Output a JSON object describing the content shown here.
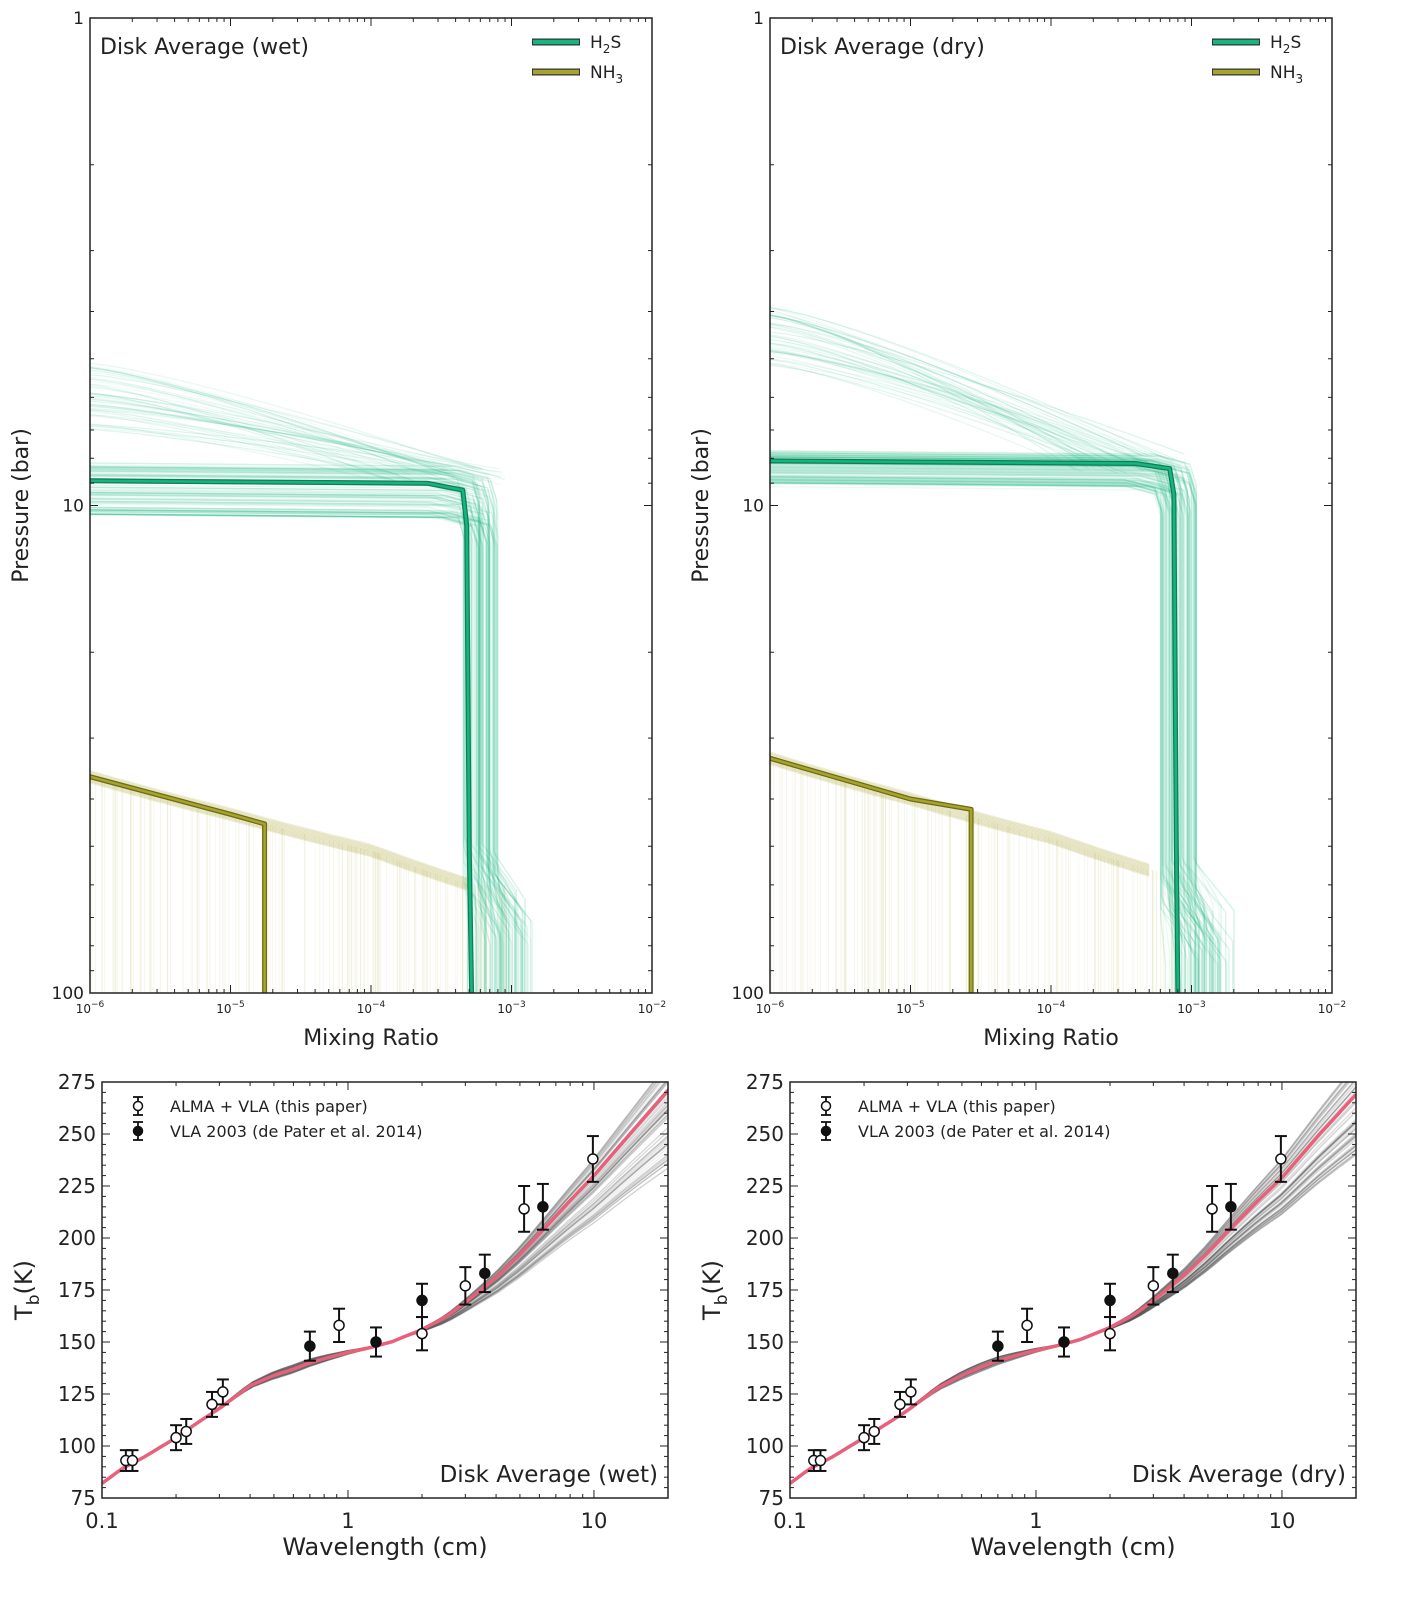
{
  "chart_data": [
    {
      "type": "line",
      "annotation": "Disk Average (wet)",
      "xlabel": "Mixing Ratio",
      "ylabel": "Pressure (bar)",
      "xscale": "log",
      "yscale": "log",
      "y_inverted": true,
      "xlim": [
        1e-06,
        0.01
      ],
      "ylim": [
        1,
        100
      ],
      "xticks": [
        {
          "v": 1e-06,
          "m": "10",
          "e": "−6"
        },
        {
          "v": 1e-05,
          "m": "10",
          "e": "−5"
        },
        {
          "v": 0.0001,
          "m": "10",
          "e": "−4"
        },
        {
          "v": 0.001,
          "m": "10",
          "e": "−3"
        },
        {
          "v": 0.01,
          "m": "10",
          "e": "−2"
        }
      ],
      "yticks": [
        {
          "v": 1,
          "t": "1"
        },
        {
          "v": 10,
          "t": "10"
        },
        {
          "v": 100,
          "t": "100"
        }
      ],
      "legend": {
        "position": "top-right",
        "entries": [
          {
            "label_main": "H",
            "label_sub": "2",
            "label_tail": "S",
            "color": "#14b57e"
          },
          {
            "label_main": "NH",
            "label_sub": "3",
            "label_tail": "",
            "color": "#a6a32e"
          }
        ]
      },
      "series": [
        {
          "name": "H2S",
          "color": "#14b57e",
          "best_fit": {
            "x": [
              1e-06,
              0.00025,
              0.00045,
              0.00048,
              0.0005,
              0.00052
            ],
            "y": [
              8.9,
              9.0,
              9.3,
              11,
              50,
              100
            ]
          },
          "ensemble": {
            "cond_x_range": [
              0.00045,
              0.0008
            ],
            "cond_p_range": [
              8.3,
              10.6
            ],
            "deep_p": [
              48,
              64
            ],
            "plume": {
              "x_start": 1e-06,
              "p_start_range": [
                5.1,
                7.0
              ],
              "p_end_range": [
                8.2,
                9.2
              ]
            }
          }
        },
        {
          "name": "NH3",
          "color": "#a6a32e",
          "best_fit": {
            "x": [
              1e-06,
              1e-05,
              1.75e-05,
              1.75e-05
            ],
            "y": [
              36,
              43,
              45,
              100
            ]
          },
          "ensemble": {
            "x_range": [
              1e-06,
              0.0009
            ],
            "line": {
              "x": [
                1e-06,
                1e-05,
                0.0001,
                0.0005
              ],
              "y": [
                36,
                43,
                51,
                60
              ]
            }
          }
        }
      ]
    },
    {
      "type": "line",
      "annotation": "Disk Average (dry)",
      "xlabel": "Mixing Ratio",
      "ylabel": "Pressure (bar)",
      "xscale": "log",
      "yscale": "log",
      "y_inverted": true,
      "xlim": [
        1e-06,
        0.01
      ],
      "ylim": [
        1,
        100
      ],
      "xticks": [
        {
          "v": 1e-06,
          "m": "10",
          "e": "−6"
        },
        {
          "v": 1e-05,
          "m": "10",
          "e": "−5"
        },
        {
          "v": 0.0001,
          "m": "10",
          "e": "−4"
        },
        {
          "v": 0.001,
          "m": "10",
          "e": "−3"
        },
        {
          "v": 0.01,
          "m": "10",
          "e": "−2"
        }
      ],
      "yticks": [
        {
          "v": 1,
          "t": "1"
        },
        {
          "v": 10,
          "t": "10"
        },
        {
          "v": 100,
          "t": "100"
        }
      ],
      "legend": {
        "position": "top-right",
        "entries": [
          {
            "label_main": "H",
            "label_sub": "2",
            "label_tail": "S",
            "color": "#14b57e"
          },
          {
            "label_main": "NH",
            "label_sub": "3",
            "label_tail": "",
            "color": "#a6a32e"
          }
        ]
      },
      "series": [
        {
          "name": "H2S",
          "color": "#14b57e",
          "best_fit": {
            "x": [
              1e-06,
              0.0004,
              0.0007,
              0.00075,
              0.00078,
              0.0008
            ],
            "y": [
              8.1,
              8.2,
              8.4,
              9.5,
              50,
              100
            ]
          },
          "ensemble": {
            "cond_x_range": [
              0.0006,
              0.0011
            ],
            "cond_p_range": [
              7.8,
              9.3
            ],
            "deep_p": [
              52,
              70
            ],
            "plume": {
              "x_start": 1e-06,
              "p_start_range": [
                3.9,
                5.2
              ],
              "p_end_range": [
                7.8,
                8.6
              ]
            }
          }
        },
        {
          "name": "NH3",
          "color": "#a6a32e",
          "best_fit": {
            "x": [
              1e-06,
              1e-05,
              2.7e-05,
              2.7e-05
            ],
            "y": [
              33,
              40,
              42,
              100
            ]
          },
          "ensemble": {
            "x_range": [
              1e-06,
              0.0009
            ],
            "line": {
              "x": [
                1e-06,
                1e-05,
                0.0001,
                0.0005
              ],
              "y": [
                33,
                40,
                48,
                56
              ]
            }
          }
        }
      ]
    },
    {
      "type": "line",
      "annotation": "Disk Average (wet)",
      "xlabel": "Wavelength (cm)",
      "ylabel": "T",
      "ylabel_sub": "b",
      "ylabel_tail": "(K)",
      "xscale": "log",
      "xlim": [
        0.1,
        20
      ],
      "ylim": [
        75,
        275
      ],
      "xticks": [
        {
          "v": 0.1,
          "t": "0.1"
        },
        {
          "v": 1,
          "t": "1"
        },
        {
          "v": 10,
          "t": "10"
        }
      ],
      "yticks": [
        75,
        100,
        125,
        150,
        175,
        200,
        225,
        250,
        275
      ],
      "legend": {
        "position": "top-left",
        "entries": [
          {
            "label": "ALMA + VLA (this paper)",
            "marker": "open-circle"
          },
          {
            "label": "VLA 2003 (de Pater et al. 2014)",
            "marker": "filled-circle"
          }
        ]
      },
      "model": {
        "color": "#e8607a",
        "x": [
          0.1,
          0.12,
          0.15,
          0.2,
          0.25,
          0.3,
          0.35,
          0.4,
          0.5,
          0.6,
          0.7,
          0.8,
          1.0,
          1.2,
          1.5,
          2.0,
          2.5,
          3.0,
          4.0,
          5.0,
          6.0,
          8.0,
          10.0,
          14.0,
          20.0
        ],
        "y": [
          82,
          89,
          95,
          104,
          112,
          118,
          124,
          129,
          134,
          137,
          140,
          142,
          145,
          147,
          150,
          156,
          162,
          169,
          181,
          192,
          202,
          218,
          230,
          250,
          271
        ],
        "ensemble_spread_end": [
          233,
          285
        ]
      },
      "observations": [
        {
          "x": 0.125,
          "y": 93,
          "err": 5,
          "type": "open"
        },
        {
          "x": 0.133,
          "y": 93,
          "err": 5,
          "type": "open"
        },
        {
          "x": 0.2,
          "y": 104,
          "err": 6,
          "type": "open"
        },
        {
          "x": 0.22,
          "y": 107,
          "err": 6,
          "type": "open"
        },
        {
          "x": 0.28,
          "y": 120,
          "err": 6,
          "type": "open"
        },
        {
          "x": 0.31,
          "y": 126,
          "err": 6,
          "type": "open"
        },
        {
          "x": 0.7,
          "y": 148,
          "err": 7,
          "type": "filled"
        },
        {
          "x": 0.92,
          "y": 158,
          "err": 8,
          "type": "open"
        },
        {
          "x": 1.3,
          "y": 150,
          "err": 7,
          "type": "filled"
        },
        {
          "x": 2.0,
          "y": 154,
          "err": 8,
          "type": "open"
        },
        {
          "x": 2.0,
          "y": 170,
          "err": 8,
          "type": "filled"
        },
        {
          "x": 3.0,
          "y": 177,
          "err": 9,
          "type": "open"
        },
        {
          "x": 3.6,
          "y": 183,
          "err": 9,
          "type": "filled"
        },
        {
          "x": 5.2,
          "y": 214,
          "err": 11,
          "type": "open"
        },
        {
          "x": 6.2,
          "y": 215,
          "err": 11,
          "type": "filled"
        },
        {
          "x": 9.9,
          "y": 238,
          "err": 11,
          "type": "open"
        }
      ]
    },
    {
      "type": "line",
      "annotation": "Disk Average (dry)",
      "xlabel": "Wavelength (cm)",
      "ylabel": "T",
      "ylabel_sub": "b",
      "ylabel_tail": "(K)",
      "xscale": "log",
      "xlim": [
        0.1,
        20
      ],
      "ylim": [
        75,
        275
      ],
      "xticks": [
        {
          "v": 0.1,
          "t": "0.1"
        },
        {
          "v": 1,
          "t": "1"
        },
        {
          "v": 10,
          "t": "10"
        }
      ],
      "yticks": [
        75,
        100,
        125,
        150,
        175,
        200,
        225,
        250,
        275
      ],
      "legend": {
        "position": "top-left",
        "entries": [
          {
            "label": "ALMA + VLA (this paper)",
            "marker": "open-circle"
          },
          {
            "label": "VLA 2003 (de Pater et al. 2014)",
            "marker": "filled-circle"
          }
        ]
      },
      "model": {
        "color": "#e8607a",
        "x": [
          0.1,
          0.12,
          0.15,
          0.2,
          0.25,
          0.3,
          0.35,
          0.4,
          0.5,
          0.6,
          0.7,
          0.8,
          1.0,
          1.2,
          1.5,
          2.0,
          2.5,
          3.0,
          4.0,
          5.0,
          6.0,
          8.0,
          10.0,
          14.0,
          20.0
        ],
        "y": [
          82,
          89,
          95,
          104,
          111,
          117,
          123,
          128,
          134,
          138,
          141,
          143,
          146,
          148,
          151,
          157,
          163,
          170,
          182,
          193,
          203,
          218,
          229,
          249,
          269
        ],
        "ensemble_spread_end": [
          240,
          285
        ]
      },
      "observations": [
        {
          "x": 0.125,
          "y": 93,
          "err": 5,
          "type": "open"
        },
        {
          "x": 0.133,
          "y": 93,
          "err": 5,
          "type": "open"
        },
        {
          "x": 0.2,
          "y": 104,
          "err": 6,
          "type": "open"
        },
        {
          "x": 0.22,
          "y": 107,
          "err": 6,
          "type": "open"
        },
        {
          "x": 0.28,
          "y": 120,
          "err": 6,
          "type": "open"
        },
        {
          "x": 0.31,
          "y": 126,
          "err": 6,
          "type": "open"
        },
        {
          "x": 0.7,
          "y": 148,
          "err": 7,
          "type": "filled"
        },
        {
          "x": 0.92,
          "y": 158,
          "err": 8,
          "type": "open"
        },
        {
          "x": 1.3,
          "y": 150,
          "err": 7,
          "type": "filled"
        },
        {
          "x": 2.0,
          "y": 154,
          "err": 8,
          "type": "open"
        },
        {
          "x": 2.0,
          "y": 170,
          "err": 8,
          "type": "filled"
        },
        {
          "x": 3.0,
          "y": 177,
          "err": 9,
          "type": "open"
        },
        {
          "x": 3.6,
          "y": 183,
          "err": 9,
          "type": "filled"
        },
        {
          "x": 5.2,
          "y": 214,
          "err": 11,
          "type": "open"
        },
        {
          "x": 6.2,
          "y": 215,
          "err": 11,
          "type": "filled"
        },
        {
          "x": 9.9,
          "y": 238,
          "err": 11,
          "type": "open"
        }
      ]
    }
  ]
}
